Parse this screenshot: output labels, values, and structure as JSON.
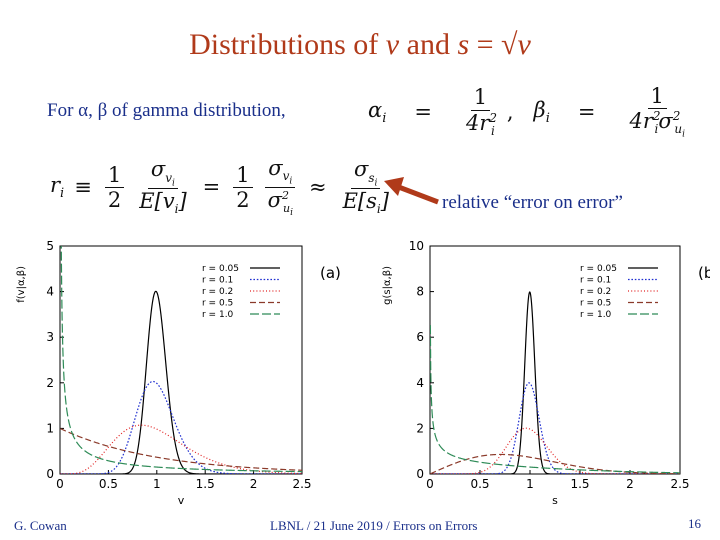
{
  "slide": {
    "title_prefix": "Distributions of ",
    "title_v": "v",
    "title_mid": " and ",
    "title_s": "s",
    "title_eq": " = √",
    "title_v2": "v",
    "intro": "For α, β of gamma distribution,",
    "note": "relative “error on error”",
    "footer_left": "G. Cowan",
    "footer_center": "LBNL / 21 June 2019 / Errors on Errors",
    "page_number": "16"
  },
  "colors": {
    "title": "#b03a1a",
    "text": "#1a2f8a",
    "arrow": "#b03a1a",
    "r005": "#000000",
    "r01": "#1f2fd0",
    "r02": "#e02020",
    "r05": "#8b3a2a",
    "r10": "#2e8b57"
  },
  "chart_data": [
    {
      "type": "line",
      "panel_label": "(a)",
      "xlabel": "v",
      "ylabel": "f(v|α,β)",
      "xlim": [
        0,
        2.5
      ],
      "ylim": [
        0,
        5
      ],
      "xticks": [
        "0",
        "0.5",
        "1",
        "1.5",
        "2",
        "2.5"
      ],
      "yticks": [
        "0",
        "1",
        "2",
        "3",
        "4",
        "5"
      ],
      "legend_position": "top-right",
      "series": [
        {
          "name": "r = 0.05",
          "dash": "solid",
          "r": 0.05
        },
        {
          "name": "r = 0.1",
          "dash": "dots",
          "r": 0.1
        },
        {
          "name": "r = 0.2",
          "dash": "fine-dots",
          "r": 0.2
        },
        {
          "name": "r = 0.5",
          "dash": "dashed",
          "r": 0.5
        },
        {
          "name": "r = 1.0",
          "dash": "long-dashed",
          "r": 1.0
        }
      ]
    },
    {
      "type": "line",
      "panel_label": "(b)",
      "xlabel": "s",
      "ylabel": "g(s|α,β)",
      "xlim": [
        0,
        2.5
      ],
      "ylim": [
        0,
        10
      ],
      "xticks": [
        "0",
        "0.5",
        "1",
        "1.5",
        "2",
        "2.5"
      ],
      "yticks": [
        "0",
        "2",
        "4",
        "6",
        "8",
        "10"
      ],
      "legend_position": "top-right",
      "series": [
        {
          "name": "r = 0.05",
          "dash": "solid",
          "r": 0.05
        },
        {
          "name": "r = 0.1",
          "dash": "dots",
          "r": 0.1
        },
        {
          "name": "r = 0.2",
          "dash": "fine-dots",
          "r": 0.2
        },
        {
          "name": "r = 0.5",
          "dash": "dashed",
          "r": 0.5
        },
        {
          "name": "r = 1.0",
          "dash": "long-dashed",
          "r": 1.0
        }
      ]
    }
  ]
}
